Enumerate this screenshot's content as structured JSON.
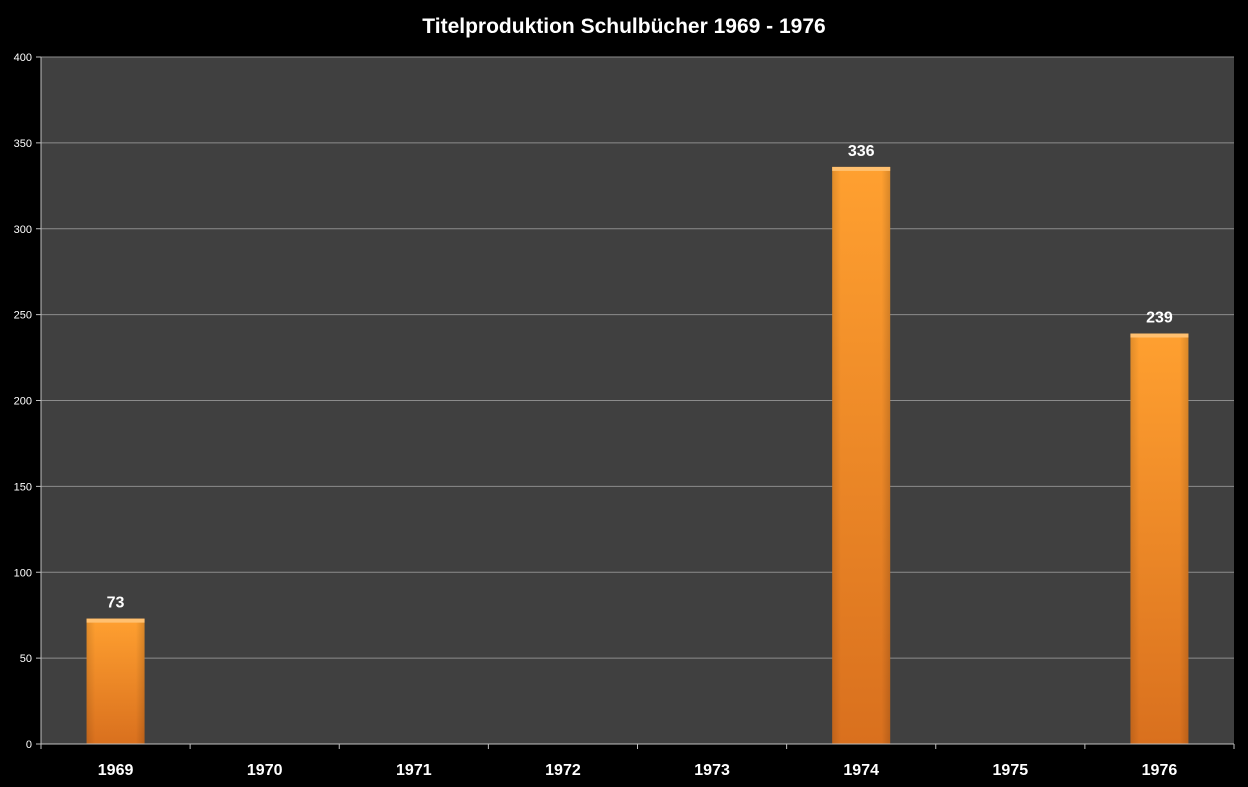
{
  "chart_data": {
    "type": "bar",
    "title": "Titelproduktion Schulbücher 1969 - 1976",
    "categories": [
      "1969",
      "1970",
      "1971",
      "1972",
      "1973",
      "1974",
      "1975",
      "1976"
    ],
    "values": [
      73,
      0,
      0,
      0,
      0,
      336,
      0,
      239
    ],
    "data_labels": [
      "73",
      "",
      "",
      "",
      "",
      "336",
      "",
      "239"
    ],
    "ylim": [
      0,
      400
    ],
    "yticks": [
      0,
      50,
      100,
      150,
      200,
      250,
      300,
      350,
      400
    ],
    "grid": true,
    "legend": "none",
    "colors": {
      "background": "#000000",
      "plot_area": "#404040",
      "gridline": "#8c8c8c",
      "bar_top": "#ffa030",
      "bar_bottom": "#d9701e",
      "text": "#ffffff"
    }
  }
}
